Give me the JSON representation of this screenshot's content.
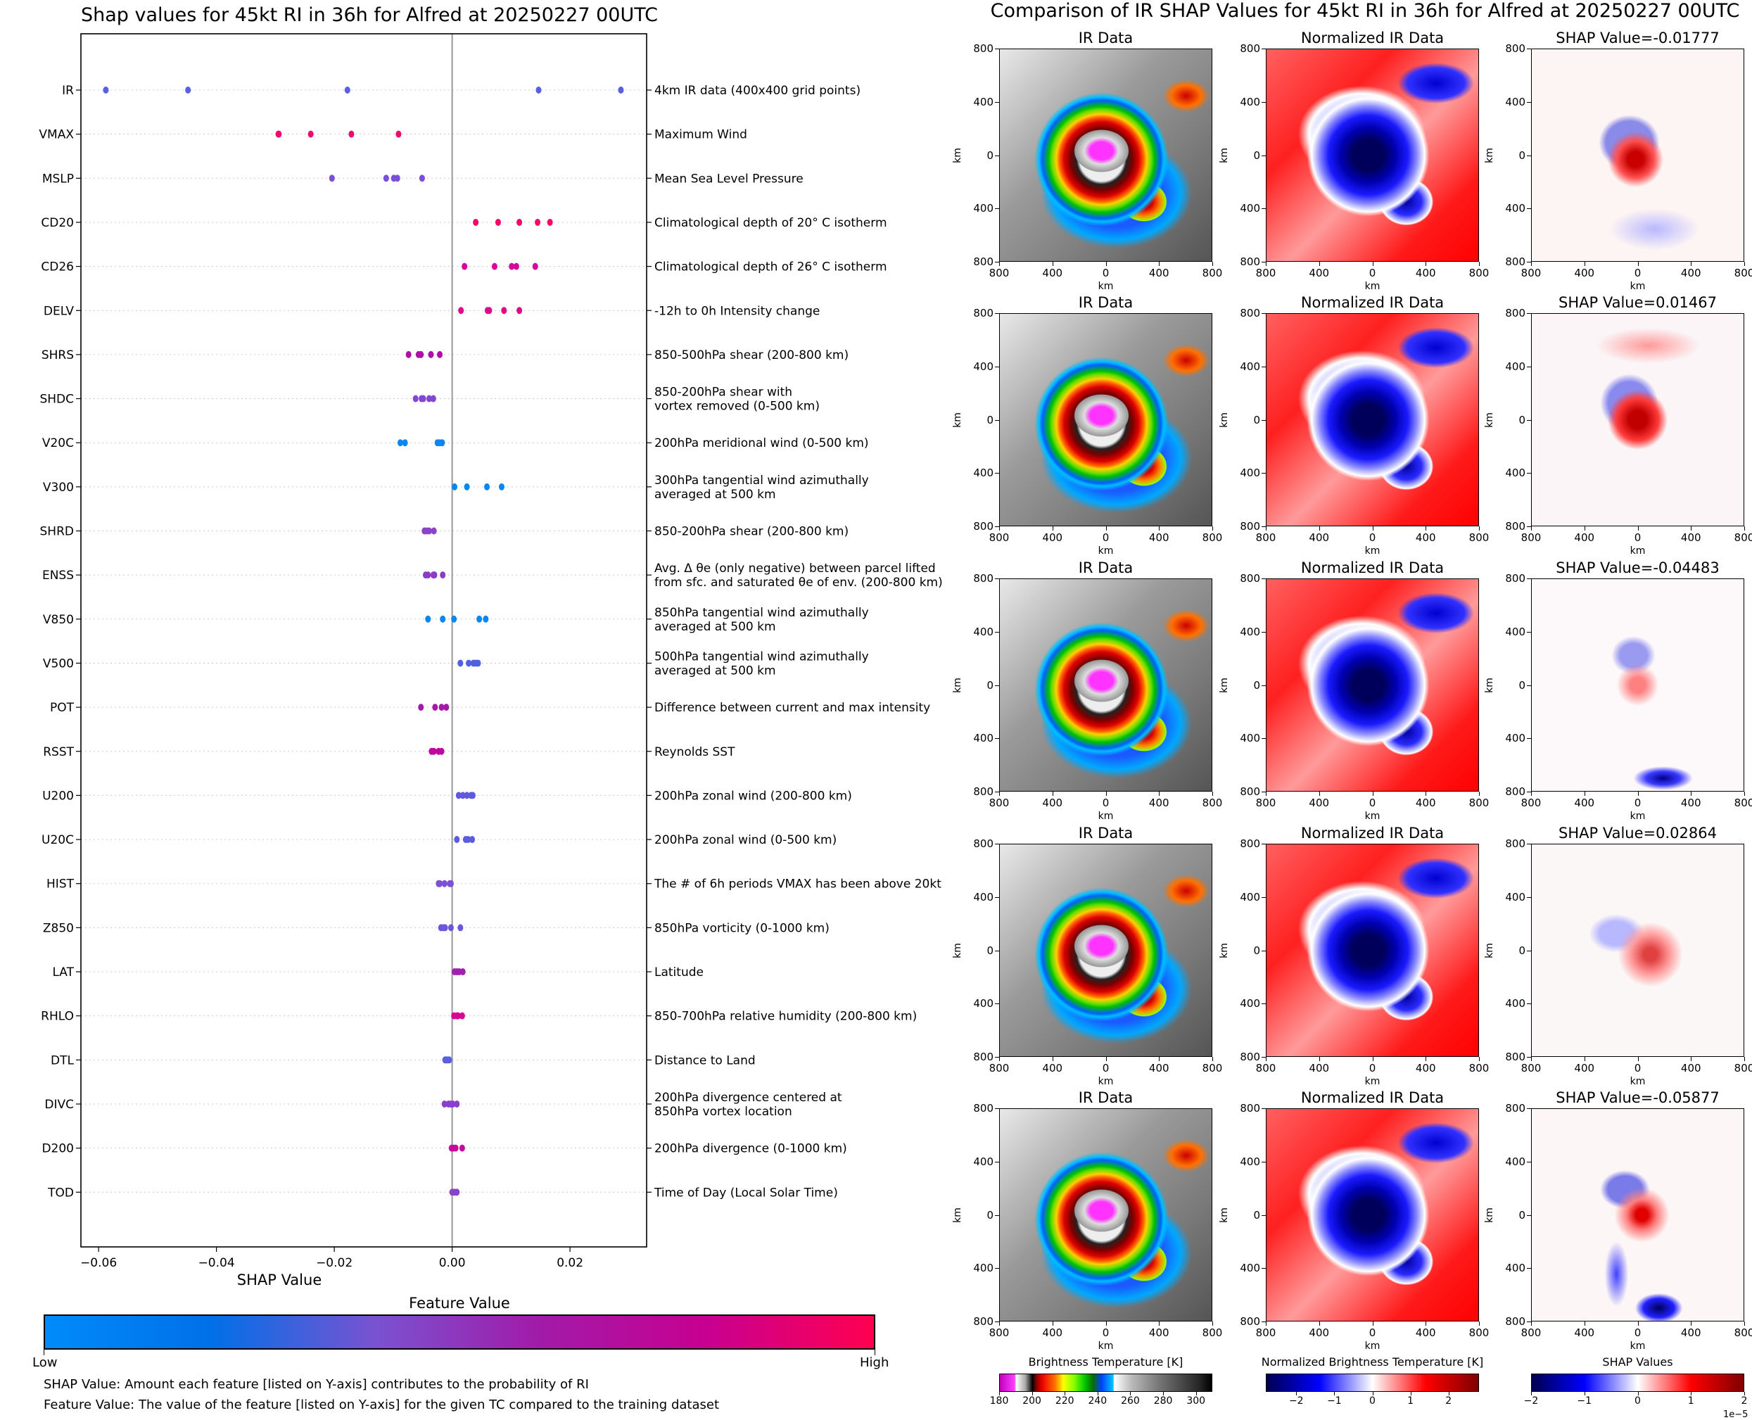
{
  "left_title": "Shap values for 45kt RI in 36h for Alfred at 20250227 00UTC",
  "right_title": "Comparison of IR SHAP Values for 45kt RI in 36h for Alfred at 20250227 00UTC",
  "chart_data": {
    "type": "scatter",
    "title": "Shap values for 45kt RI in 36h for Alfred at 20250227 00UTC",
    "xlabel": "SHAP Value",
    "ylabel": "",
    "xlim": [
      -0.063,
      0.033
    ],
    "xticks": [
      -0.06,
      -0.04,
      -0.02,
      0.0,
      0.02
    ],
    "xtick_labels": [
      "−0.06",
      "−0.04",
      "−0.02",
      "0.00",
      "0.02"
    ],
    "grid": "horizontal dotted",
    "features": [
      {
        "name": "IR",
        "description": "4km IR data (400x400 grid points)",
        "color": "#5a5ee0",
        "values": [
          -0.05877,
          -0.04483,
          -0.01777,
          0.01467,
          0.02864
        ]
      },
      {
        "name": "VMAX",
        "description": "Maximum Wind",
        "color": "#f00a6e",
        "values": [
          -0.0295,
          -0.0294,
          -0.024,
          -0.0171,
          -0.0091
        ]
      },
      {
        "name": "MSLP",
        "description": "Mean Sea Level Pressure",
        "color": "#7a50d8",
        "values": [
          -0.0204,
          -0.0112,
          -0.0099,
          -0.0093,
          -0.0051
        ]
      },
      {
        "name": "CD20",
        "description": "Climatological depth of 20° C isotherm",
        "color": "#f5086a",
        "values": [
          0.004,
          0.0078,
          0.0114,
          0.0145,
          0.0166
        ]
      },
      {
        "name": "CD26",
        "description": "Climatological depth of 26° C isotherm",
        "color": "#d6069a",
        "values": [
          0.0021,
          0.0072,
          0.0101,
          0.0109,
          0.0141
        ]
      },
      {
        "name": "DELV",
        "description": "-12h to 0h Intensity change",
        "color": "#e0078a",
        "values": [
          0.0015,
          0.006,
          0.0063,
          0.0088,
          0.0114
        ]
      },
      {
        "name": "SHRS",
        "description": "850-500hPa shear (200-800 km)",
        "color": "#b00ea8",
        "values": [
          -0.0074,
          -0.0057,
          -0.0053,
          -0.0036,
          -0.0021
        ]
      },
      {
        "name": "SHDC",
        "description": "850-200hPa shear with\nvortex removed (0-500 km)",
        "color": "#8248d0",
        "values": [
          -0.0062,
          -0.0052,
          -0.0049,
          -0.0039,
          -0.0032
        ]
      },
      {
        "name": "V20C",
        "description": "200hPa meridional wind (0-500 km)",
        "color": "#0a86f0",
        "values": [
          -0.0088,
          -0.008,
          -0.0025,
          -0.0021,
          -0.0017
        ]
      },
      {
        "name": "V300",
        "description": "300hPa tangential wind azimuthally\naveraged at 500 km",
        "color": "#0a86f0",
        "values": [
          0.0004,
          0.0025,
          0.0059,
          0.0084
        ]
      },
      {
        "name": "SHRD",
        "description": "850-200hPa shear (200-800 km)",
        "color": "#8a44c8",
        "values": [
          -0.0047,
          -0.0043,
          -0.0039,
          -0.0031
        ]
      },
      {
        "name": "ENSS",
        "description": "Avg. Δ θe (only negative) between parcel lifted\nfrom sfc. and saturated θe of env. (200-800 km)",
        "color": "#8a3cc4",
        "values": [
          -0.0045,
          -0.0041,
          -0.0032,
          -0.003,
          -0.0016
        ]
      },
      {
        "name": "V850",
        "description": "850hPa tangential wind azimuthally\naveraged at 500 km",
        "color": "#0a86f0",
        "values": [
          -0.0041,
          -0.0016,
          0.0003,
          0.0046,
          0.0057
        ]
      },
      {
        "name": "V500",
        "description": "500hPa tangential wind azimuthally\naveraged at 500 km",
        "color": "#5060e0",
        "values": [
          0.0014,
          0.0028,
          0.0036,
          0.004,
          0.0044
        ]
      },
      {
        "name": "POT",
        "description": "Difference between current and max intensity",
        "color": "#a818a8",
        "values": [
          -0.0053,
          -0.0029,
          -0.0018,
          -0.001
        ]
      },
      {
        "name": "RSST",
        "description": "Reynolds SST",
        "color": "#c006a0",
        "values": [
          -0.0035,
          -0.0031,
          -0.0023,
          -0.0018
        ]
      },
      {
        "name": "U200",
        "description": "200hPa zonal wind (200-800 km)",
        "color": "#6058e0",
        "values": [
          0.0011,
          0.0018,
          0.0025,
          0.0032,
          0.0035
        ]
      },
      {
        "name": "U20C",
        "description": "200hPa zonal wind (0-500 km)",
        "color": "#5c5ce0",
        "values": [
          0.0008,
          0.0023,
          0.0027,
          0.0034
        ]
      },
      {
        "name": "HIST",
        "description": "The # of 6h periods VMAX has been above 20kt",
        "color": "#7c50d8",
        "values": [
          -0.0023,
          -0.0021,
          -0.0013,
          -0.0004,
          -0.0002
        ]
      },
      {
        "name": "Z850",
        "description": "850hPa vorticity (0-1000 km)",
        "color": "#6a58dc",
        "values": [
          -0.0019,
          -0.0015,
          -0.0012,
          -0.0002,
          0.0014
        ]
      },
      {
        "name": "LAT",
        "description": "Latitude",
        "color": "#a020b0",
        "values": [
          0.0004,
          0.0008,
          0.0012,
          0.0018
        ]
      },
      {
        "name": "RHLO",
        "description": "850-700hPa relative humidity (200-800 km)",
        "color": "#d80690",
        "values": [
          0.0003,
          0.0008,
          0.001,
          0.0017
        ]
      },
      {
        "name": "DTL",
        "description": "Distance to Land",
        "color": "#5a60e0",
        "values": [
          -0.0012,
          -0.001,
          -0.0007,
          -0.0005
        ]
      },
      {
        "name": "DIVC",
        "description": "200hPa divergence centered at\n850hPa vortex location",
        "color": "#8a40cc",
        "values": [
          -0.0013,
          -0.0006,
          -0.0002,
          0.0001,
          0.0008
        ]
      },
      {
        "name": "D200",
        "description": "200hPa divergence (0-1000 km)",
        "color": "#c80a9c",
        "values": [
          -0.0001,
          0.0002,
          0.0006,
          0.0017
        ]
      },
      {
        "name": "TOD",
        "description": "Time of Day (Local Solar Time)",
        "color": "#8a44c8",
        "values": [
          0.0,
          0.0004,
          0.0008
        ]
      }
    ],
    "colorbar": {
      "title": "Feature Value",
      "low_label": "Low",
      "high_label": "High",
      "colors": [
        "#008bfa",
        "#0070e8",
        "#7a52d0",
        "#a21aa8",
        "#c80090",
        "#ff0050"
      ]
    }
  },
  "notes": [
    "SHAP Value: Amount each feature [listed on Y-axis] contributes to the probability of RI",
    "Feature Value: The value of the feature [listed on Y-axis] for the given TC compared to the training dataset"
  ],
  "panels": {
    "column_titles": [
      "IR Data",
      "Normalized IR Data"
    ],
    "shap_titles": [
      "SHAP Value=-0.01777",
      "SHAP Value=0.01467",
      "SHAP Value=-0.04483",
      "SHAP Value=0.02864",
      "SHAP Value=-0.05877"
    ],
    "axis_label": "km",
    "tick_labels_y": [
      "800",
      "400",
      "0",
      "400",
      "800"
    ],
    "tick_labels_x": [
      "800",
      "400",
      "0",
      "400",
      "800"
    ]
  },
  "colorbars": [
    {
      "title": "Brightness Temperature [K]",
      "ticks": [
        "180",
        "200",
        "220",
        "240",
        "260",
        "280",
        "300"
      ],
      "range": [
        180,
        310
      ]
    },
    {
      "title": "Normalized Brightness Temperature [K]",
      "ticks": [
        "−2",
        "−1",
        "0",
        "1",
        "2"
      ],
      "range": [
        -2.8,
        2.8
      ]
    },
    {
      "title": "SHAP Values",
      "ticks": [
        "−2",
        "−1",
        "0",
        "1",
        "2"
      ],
      "range": [
        -2,
        2
      ],
      "multiplier": "1e−5"
    }
  ]
}
